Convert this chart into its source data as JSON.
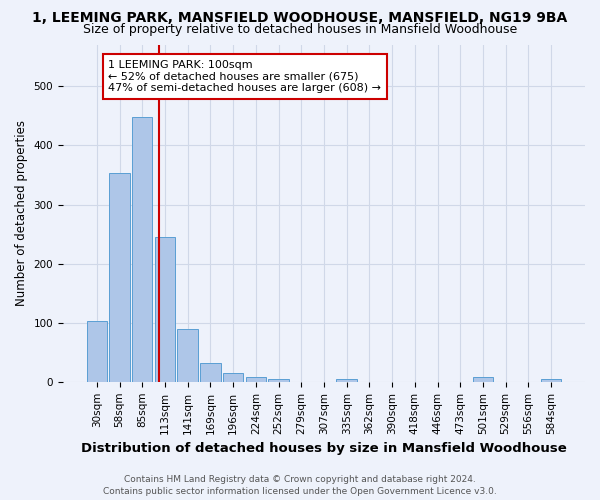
{
  "title": "1, LEEMING PARK, MANSFIELD WOODHOUSE, MANSFIELD, NG19 9BA",
  "subtitle": "Size of property relative to detached houses in Mansfield Woodhouse",
  "xlabel": "Distribution of detached houses by size in Mansfield Woodhouse",
  "ylabel": "Number of detached properties",
  "bar_labels": [
    "30sqm",
    "58sqm",
    "85sqm",
    "113sqm",
    "141sqm",
    "169sqm",
    "196sqm",
    "224sqm",
    "252sqm",
    "279sqm",
    "307sqm",
    "335sqm",
    "362sqm",
    "390sqm",
    "418sqm",
    "446sqm",
    "473sqm",
    "501sqm",
    "529sqm",
    "556sqm",
    "584sqm"
  ],
  "bar_values": [
    103,
    353,
    448,
    245,
    90,
    32,
    15,
    9,
    5,
    0,
    0,
    5,
    0,
    0,
    0,
    0,
    0,
    8,
    0,
    0,
    5
  ],
  "bar_color": "#aec6e8",
  "bar_edge_color": "#5a9fd4",
  "background_color": "#eef2fb",
  "grid_color": "#d0d8e8",
  "vline_x": 2.73,
  "vline_color": "#cc0000",
  "annotation_line1": "1 LEEMING PARK: 100sqm",
  "annotation_line2": "← 52% of detached houses are smaller (675)",
  "annotation_line3": "47% of semi-detached houses are larger (608) →",
  "annotation_box_color": "#ffffff",
  "annotation_box_edge": "#cc0000",
  "footer": "Contains HM Land Registry data © Crown copyright and database right 2024.\nContains public sector information licensed under the Open Government Licence v3.0.",
  "ylim": [
    0,
    570
  ],
  "title_fontsize": 10,
  "subtitle_fontsize": 9,
  "xlabel_fontsize": 9.5,
  "ylabel_fontsize": 8.5,
  "tick_fontsize": 7.5,
  "annotation_fontsize": 8,
  "footer_fontsize": 6.5
}
